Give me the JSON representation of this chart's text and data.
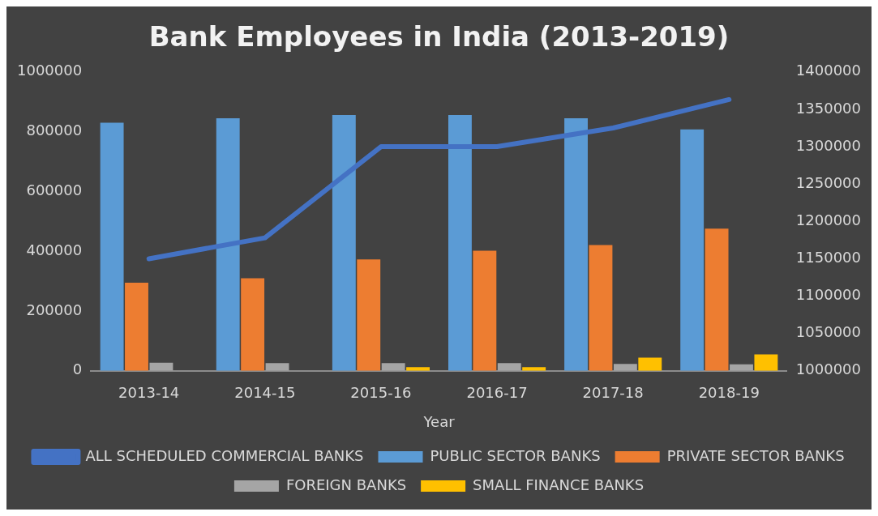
{
  "chart_data": {
    "type": "bar",
    "title": "Bank Employees in India (2013-2019)",
    "xlabel": "Year",
    "categories": [
      "2013-14",
      "2014-15",
      "2015-16",
      "2016-17",
      "2017-18",
      "2018-19"
    ],
    "series": [
      {
        "name": "PUBLIC SECTOR BANKS",
        "color": "#5b9bd5",
        "values": [
          830000,
          845000,
          856000,
          856000,
          845000,
          808000
        ]
      },
      {
        "name": "PRIVATE SECTOR BANKS",
        "color": "#ed7d31",
        "values": [
          295000,
          310000,
          373000,
          402000,
          421000,
          476000
        ]
      },
      {
        "name": "FOREIGN BANKS",
        "color": "#a5a5a5",
        "values": [
          27000,
          26000,
          26000,
          26000,
          23000,
          22000
        ]
      },
      {
        "name": "SMALL FINANCE BANKS",
        "color": "#ffc000",
        "values": [
          null,
          null,
          12000,
          12000,
          44000,
          55000
        ]
      },
      {
        "name": "ALL SCHEDULED COMMERCIAL BANKS",
        "color": "#4472c4",
        "type": "line",
        "axis": "y2",
        "values": [
          1150000,
          1178000,
          1300000,
          1300000,
          1325000,
          1363000
        ]
      }
    ],
    "ylim": [
      0,
      1000000
    ],
    "yticks": [
      0,
      200000,
      400000,
      600000,
      800000,
      1000000
    ],
    "y2lim": [
      1000000,
      1400000
    ],
    "y2ticks": [
      1000000,
      1050000,
      1100000,
      1150000,
      1200000,
      1250000,
      1300000,
      1350000,
      1400000
    ],
    "grid": false,
    "legend": "bottom",
    "marker": "none"
  }
}
